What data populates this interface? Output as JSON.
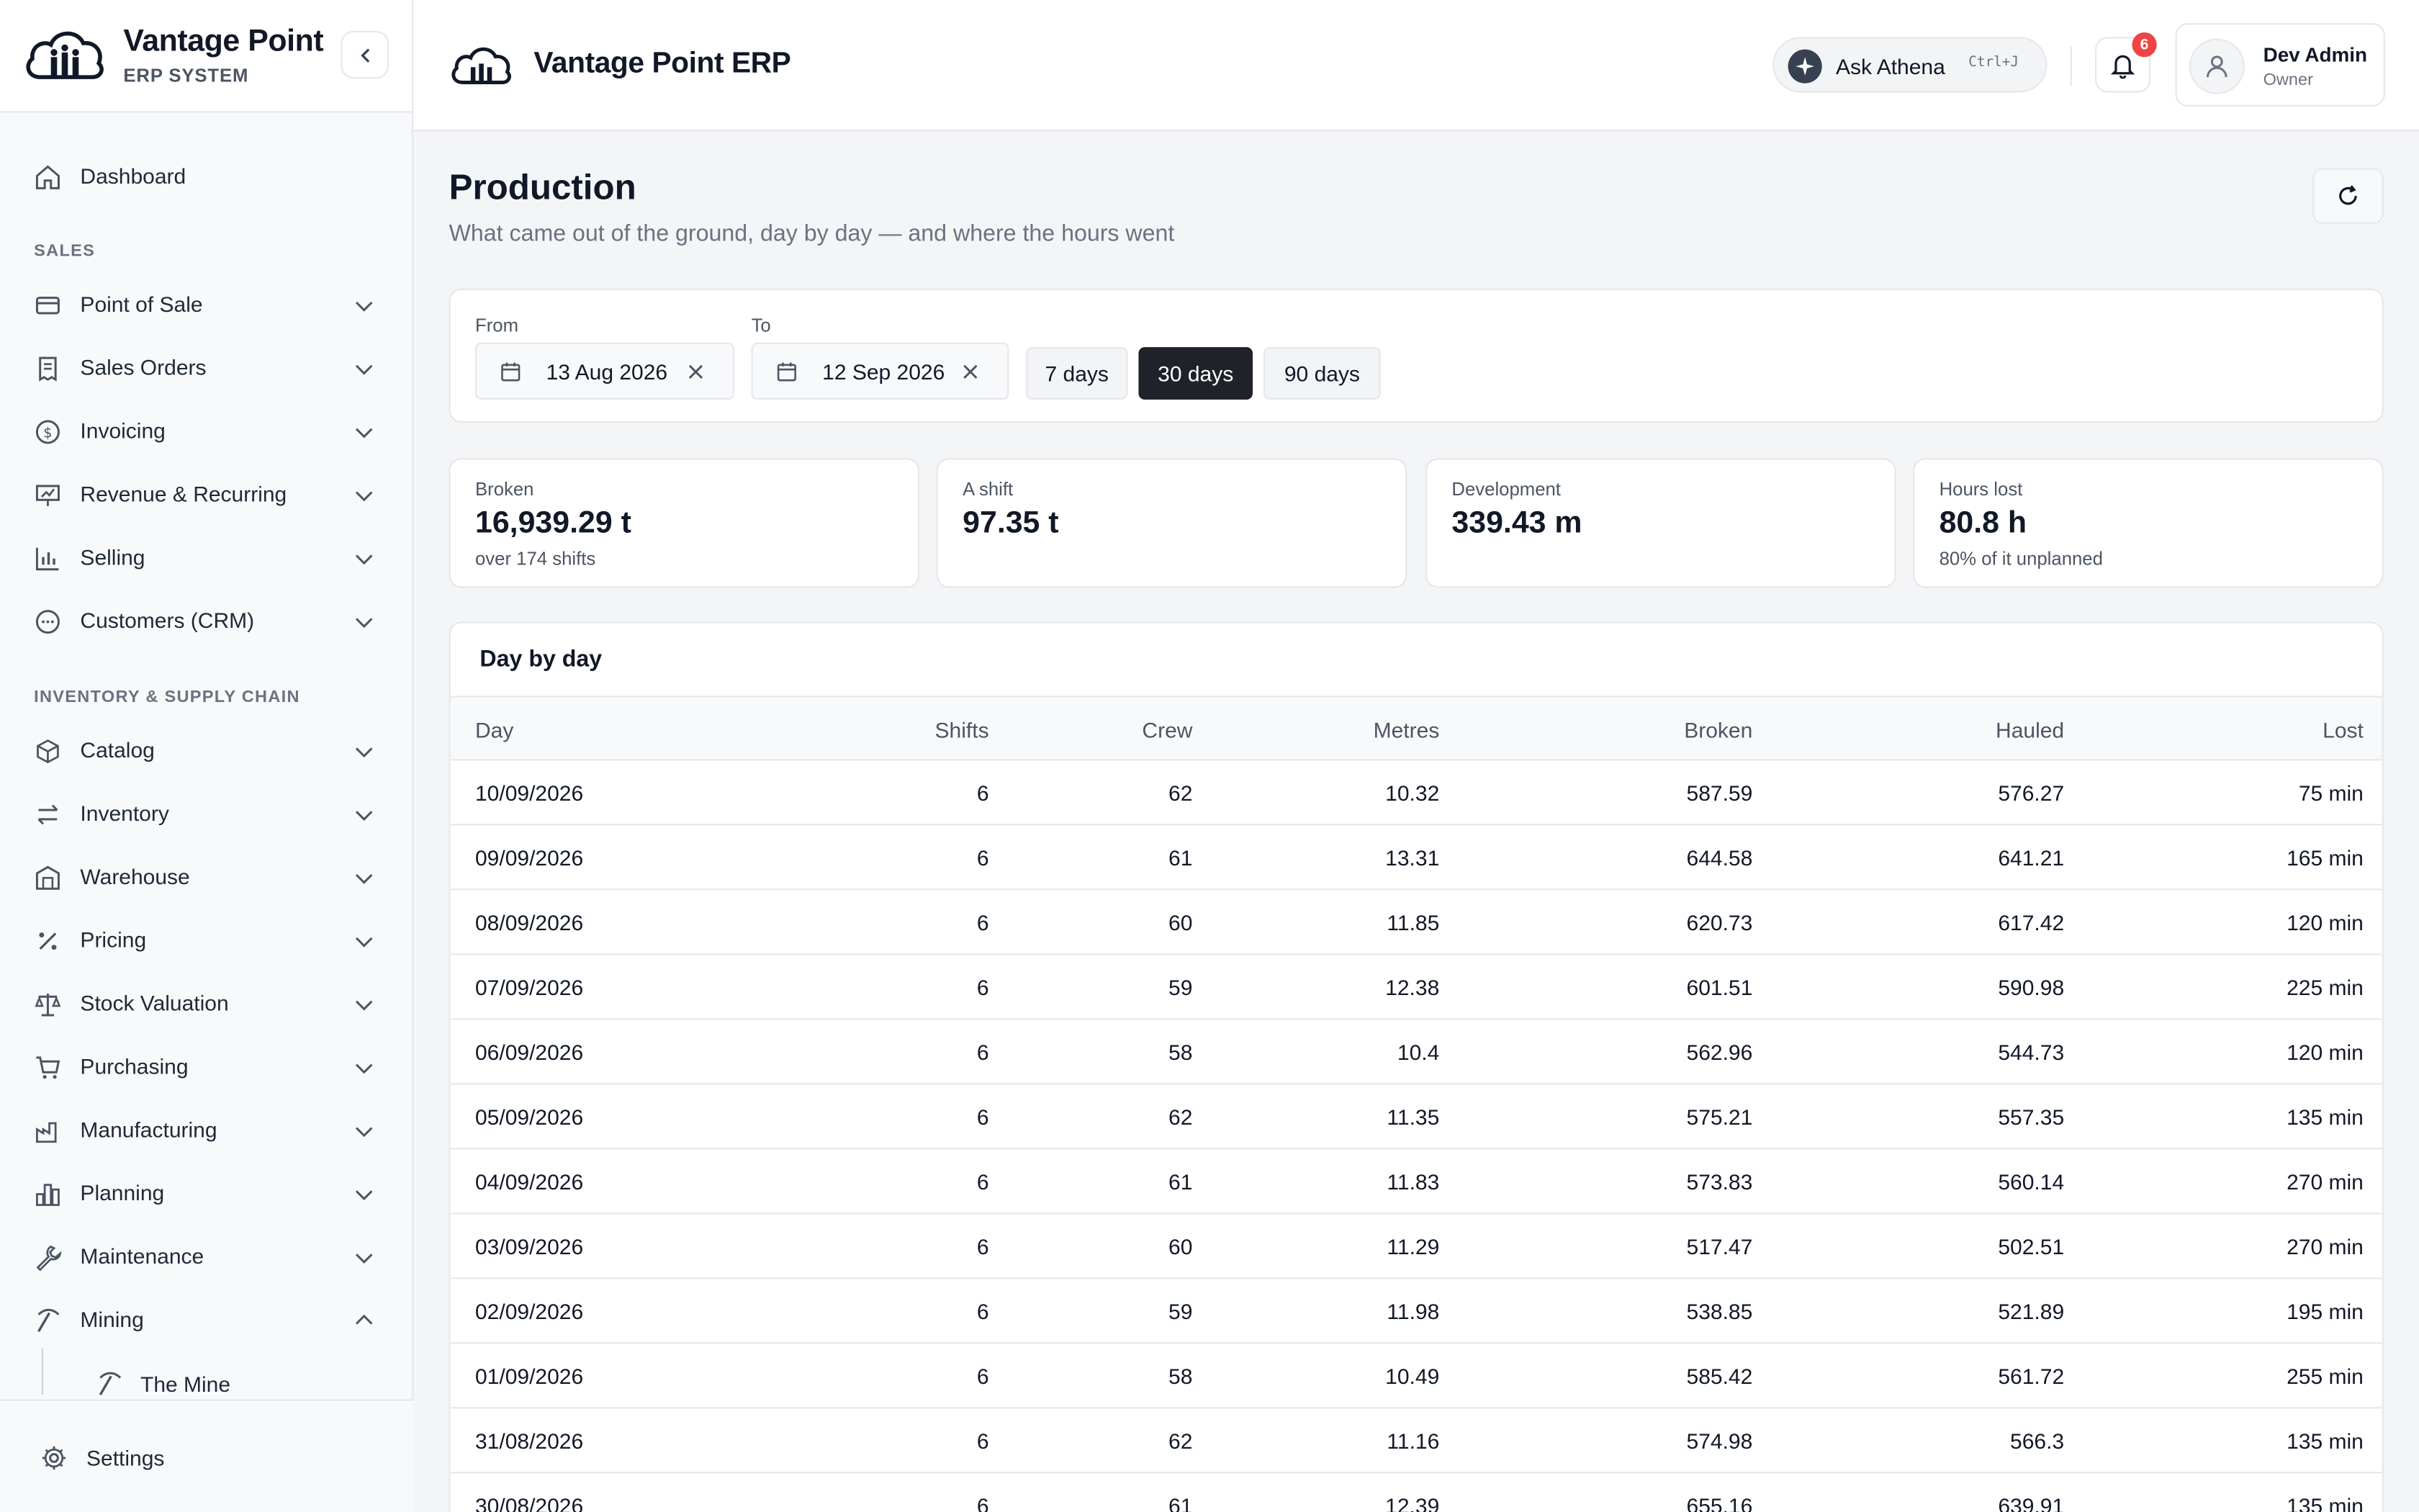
{
  "brand": {
    "title": "Vantage Point",
    "subtitle": "ERP SYSTEM"
  },
  "sidebar": {
    "dashboard": "Dashboard",
    "sections": [
      {
        "title": "SALES",
        "items": [
          "Point of Sale",
          "Sales Orders",
          "Invoicing",
          "Revenue & Recurring",
          "Selling",
          "Customers (CRM)"
        ]
      },
      {
        "title": "INVENTORY & SUPPLY CHAIN",
        "items": [
          "Catalog",
          "Inventory",
          "Warehouse",
          "Pricing",
          "Stock Valuation",
          "Purchasing",
          "Manufacturing",
          "Planning",
          "Maintenance",
          "Mining"
        ]
      }
    ],
    "sub_item": "The Mine",
    "settings": "Settings"
  },
  "header": {
    "title": "Vantage Point ERP",
    "ask": "Ask Athena",
    "shortcut": "Ctrl+J",
    "notifications": "6",
    "user_name": "Dev Admin",
    "user_role": "Owner"
  },
  "page": {
    "title": "Production",
    "subtitle": "What came out of the ground, day by day — and where the hours went"
  },
  "filters": {
    "from_label": "From",
    "from_value": "13 Aug 2026",
    "to_label": "To",
    "to_value": "12 Sep 2026",
    "ranges": [
      "7 days",
      "30 days",
      "90 days"
    ],
    "active_range": "30 days"
  },
  "kpis": [
    {
      "label": "Broken",
      "value": "16,939.29 t",
      "note": "over 174 shifts"
    },
    {
      "label": "A shift",
      "value": "97.35 t",
      "note": ""
    },
    {
      "label": "Development",
      "value": "339.43 m",
      "note": ""
    },
    {
      "label": "Hours lost",
      "value": "80.8 h",
      "note": "80% of it unplanned"
    }
  ],
  "table": {
    "title": "Day by day",
    "columns": [
      "Day",
      "Shifts",
      "Crew",
      "Metres",
      "Broken",
      "Hauled",
      "Lost"
    ],
    "rows": [
      [
        "10/09/2026",
        "6",
        "62",
        "10.32",
        "587.59",
        "576.27",
        "75 min"
      ],
      [
        "09/09/2026",
        "6",
        "61",
        "13.31",
        "644.58",
        "641.21",
        "165 min"
      ],
      [
        "08/09/2026",
        "6",
        "60",
        "11.85",
        "620.73",
        "617.42",
        "120 min"
      ],
      [
        "07/09/2026",
        "6",
        "59",
        "12.38",
        "601.51",
        "590.98",
        "225 min"
      ],
      [
        "06/09/2026",
        "6",
        "58",
        "10.4",
        "562.96",
        "544.73",
        "120 min"
      ],
      [
        "05/09/2026",
        "6",
        "62",
        "11.35",
        "575.21",
        "557.35",
        "135 min"
      ],
      [
        "04/09/2026",
        "6",
        "61",
        "11.83",
        "573.83",
        "560.14",
        "270 min"
      ],
      [
        "03/09/2026",
        "6",
        "60",
        "11.29",
        "517.47",
        "502.51",
        "270 min"
      ],
      [
        "02/09/2026",
        "6",
        "59",
        "11.98",
        "538.85",
        "521.89",
        "195 min"
      ],
      [
        "01/09/2026",
        "6",
        "58",
        "10.49",
        "585.42",
        "561.72",
        "255 min"
      ],
      [
        "31/08/2026",
        "6",
        "62",
        "11.16",
        "574.98",
        "566.3",
        "135 min"
      ],
      [
        "30/08/2026",
        "6",
        "61",
        "12.39",
        "655.16",
        "639.91",
        "135 min"
      ]
    ]
  },
  "colors": {
    "accent": "#1f2329",
    "badge": "#ef4444",
    "border": "#e5e7eb"
  }
}
